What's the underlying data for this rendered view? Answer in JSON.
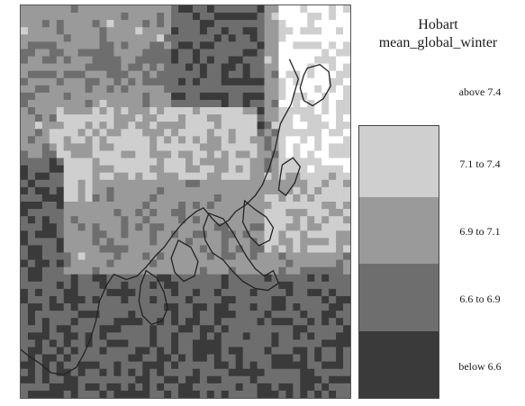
{
  "title": "Hobart",
  "subtitle": "mean_global_winter",
  "legend": {
    "items": [
      {
        "label": "above  7.4",
        "color": "#ffffff"
      },
      {
        "label": "7.1 to  7.4",
        "color": "#cfcfcf"
      },
      {
        "label": "6.9 to  7.1",
        "color": "#9a9a9a"
      },
      {
        "label": "6.6 to  6.9",
        "color": "#6e6e6e"
      },
      {
        "label": "below  6.6",
        "color": "#3a3a3a"
      }
    ]
  },
  "map": {
    "grid_columns": 46,
    "grid_rows": 54,
    "coastline_color": "#222222"
  }
}
